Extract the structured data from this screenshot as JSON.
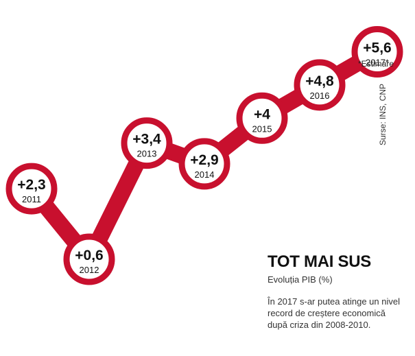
{
  "chart_data": {
    "type": "line",
    "title": "TOT MAI SUS",
    "subtitle": "Evoluția PIB (%)",
    "x": [
      "2011",
      "2012",
      "2013",
      "2014",
      "2015",
      "2016",
      "2017*"
    ],
    "values": [
      2.3,
      0.6,
      3.4,
      2.9,
      4,
      4.8,
      5.6
    ],
    "value_labels": [
      "+2,3",
      "+0,6",
      "+3,4",
      "+2,9",
      "+4",
      "+4,8",
      "+5,6"
    ],
    "xlabel": "",
    "ylabel": "",
    "grid": false,
    "annotations": {
      "footnote": "*Estimare",
      "source": "Surse: INS, CNP",
      "description": "În 2017 s-ar putea atinge un nivel record de creștere economică după criza din 2008-2010."
    },
    "colors": {
      "line": "#c8102e",
      "marker_fill": "#ffffff",
      "text": "#111111"
    }
  }
}
